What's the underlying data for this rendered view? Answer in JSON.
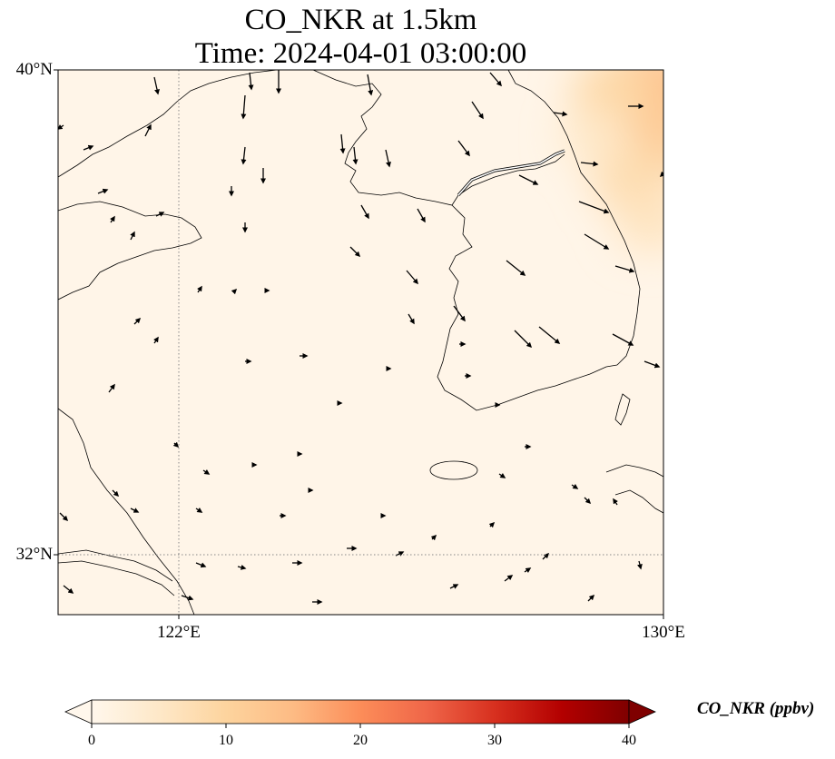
{
  "title": {
    "line1": "CO_NKR at 1.5km",
    "line2": "Time: 2024-04-01 03:00:00"
  },
  "map": {
    "projection": "PlateCarree",
    "lon_range": [
      120.0,
      130.0
    ],
    "lat_range": [
      31.0,
      40.0
    ],
    "gridlines": {
      "style": "dotted",
      "color": "#888888",
      "lat_labels": [
        "40°N",
        "32°N"
      ],
      "lon_labels": [
        "122°E",
        "130°E"
      ]
    },
    "field": {
      "variable": "CO_NKR",
      "units": "ppbv",
      "description_note": "near-zero background; elevated values only in the northeast corner",
      "hotspots": [
        {
          "lon": 129.8,
          "lat": 39.7,
          "value": 14
        },
        {
          "lon": 129.2,
          "lat": 39.6,
          "value": 9
        },
        {
          "lon": 129.7,
          "lat": 38.7,
          "value": 12
        },
        {
          "lon": 129.5,
          "lat": 38.2,
          "value": 8
        },
        {
          "lon": 129.8,
          "lat": 37.5,
          "value": 6
        },
        {
          "lon": 128.9,
          "lat": 38.9,
          "value": 5
        }
      ]
    },
    "wind_vectors_note": "black arrows"
  },
  "colorbar": {
    "label": "CO_NKR (ppbv)",
    "cmap": "OrRd",
    "colors": [
      "#fff7ec",
      "#fee8c8",
      "#fdd49e",
      "#fdbb84",
      "#fc8d59",
      "#ef6548",
      "#d7301f",
      "#b30000",
      "#7f0000"
    ],
    "vmin": 0,
    "vmax": 40,
    "extend": "both",
    "tick_values": [
      0,
      10,
      20,
      30,
      40
    ],
    "tick_labels": [
      "0",
      "10",
      "20",
      "30",
      "40"
    ]
  }
}
